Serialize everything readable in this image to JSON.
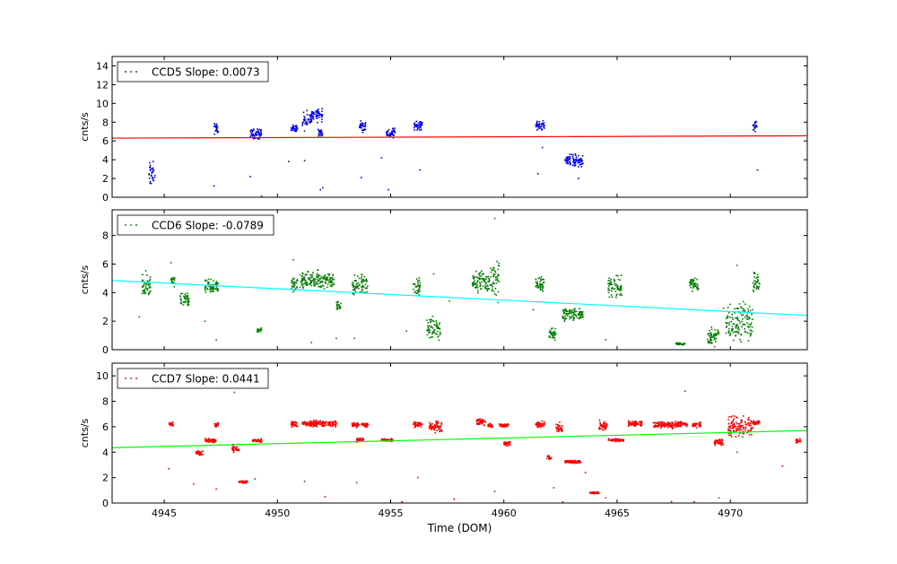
{
  "chart_data": [
    {
      "type": "scatter",
      "ylabel": "cnts/s",
      "xlim": [
        4942.7,
        4973.4
      ],
      "ylim": [
        0,
        15
      ],
      "yticks": [
        0,
        2,
        4,
        6,
        8,
        10,
        12,
        14
      ],
      "legend": "upper-left",
      "series": [
        {
          "name": "CCD5 Slope: 0.0073",
          "color": "#0000ff",
          "clusters": [
            {
              "x": [
                4944.3,
                4944.6
              ],
              "y": [
                0.5,
                4.3
              ]
            },
            {
              "x": [
                4947.2,
                4947.4
              ],
              "y": [
                6.5,
                8.3
              ]
            },
            {
              "x": [
                4948.8,
                4949.3
              ],
              "y": [
                6.0,
                7.5
              ]
            },
            {
              "x": [
                4950.6,
                4950.9
              ],
              "y": [
                6.8,
                7.9
              ]
            },
            {
              "x": [
                4951.1,
                4951.5
              ],
              "y": [
                6.8,
                9.5
              ]
            },
            {
              "x": [
                4951.5,
                4952.0
              ],
              "y": [
                7.8,
                9.8
              ]
            },
            {
              "x": [
                4951.8,
                4952.0
              ],
              "y": [
                6.3,
                7.5
              ]
            },
            {
              "x": [
                4953.6,
                4953.9
              ],
              "y": [
                6.8,
                8.3
              ]
            },
            {
              "x": [
                4954.8,
                4955.2
              ],
              "y": [
                6.2,
                7.6
              ]
            },
            {
              "x": [
                4956.0,
                4956.4
              ],
              "y": [
                7.0,
                8.3
              ]
            },
            {
              "x": [
                4961.4,
                4961.8
              ],
              "y": [
                7.0,
                8.3
              ]
            },
            {
              "x": [
                4962.7,
                4963.5
              ],
              "y": [
                3.0,
                4.8
              ]
            },
            {
              "x": [
                4971.0,
                4971.2
              ],
              "y": [
                6.8,
                8.3
              ]
            }
          ],
          "outliers": {
            "x": [
              4947.2,
              4948.8,
              4949.3,
              4950.5,
              4951.2,
              4951.9,
              4952.0,
              4953.7,
              4954.6,
              4954.9,
              4956.3,
              4961.5,
              4961.7,
              4963.3,
              4971.2
            ],
            "y": [
              1.2,
              2.2,
              0.1,
              3.8,
              3.9,
              0.8,
              1.0,
              2.1,
              4.2,
              0.8,
              2.9,
              2.5,
              5.3,
              2.0,
              2.9
            ]
          }
        }
      ],
      "trend": {
        "color": "#ff0000",
        "x": [
          4942.7,
          4973.4
        ],
        "y": [
          6.3,
          6.55
        ]
      }
    },
    {
      "type": "scatter",
      "ylabel": "cnts/s",
      "xlim": [
        4942.7,
        4973.4
      ],
      "ylim": [
        0,
        9.8
      ],
      "yticks": [
        0,
        2,
        4,
        6,
        8
      ],
      "legend": "upper-left",
      "series": [
        {
          "name": "CCD6 Slope: -0.0789",
          "color": "#008000",
          "clusters": [
            {
              "x": [
                4944.0,
                4944.4
              ],
              "y": [
                3.2,
                5.7
              ]
            },
            {
              "x": [
                4945.3,
                4945.5
              ],
              "y": [
                4.2,
                5.3
              ]
            },
            {
              "x": [
                4945.7,
                4946.1
              ],
              "y": [
                2.8,
                4.1
              ]
            },
            {
              "x": [
                4946.8,
                4947.4
              ],
              "y": [
                3.6,
                5.2
              ]
            },
            {
              "x": [
                4949.1,
                4949.3
              ],
              "y": [
                1.1,
                1.6
              ]
            },
            {
              "x": [
                4950.6,
                4950.9
              ],
              "y": [
                3.7,
                5.4
              ]
            },
            {
              "x": [
                4951.0,
                4952.5
              ],
              "y": [
                4.0,
                5.7
              ]
            },
            {
              "x": [
                4952.6,
                4952.8
              ],
              "y": [
                2.6,
                3.6
              ]
            },
            {
              "x": [
                4953.3,
                4954.0
              ],
              "y": [
                3.6,
                5.5
              ]
            },
            {
              "x": [
                4956.0,
                4956.3
              ],
              "y": [
                3.5,
                5.4
              ]
            },
            {
              "x": [
                4956.6,
                4957.2
              ],
              "y": [
                0.3,
                2.8
              ]
            },
            {
              "x": [
                4958.6,
                4959.4
              ],
              "y": [
                3.6,
                5.8
              ]
            },
            {
              "x": [
                4959.4,
                4959.8
              ],
              "y": [
                2.8,
                7.4
              ]
            },
            {
              "x": [
                4961.4,
                4961.8
              ],
              "y": [
                3.8,
                5.4
              ]
            },
            {
              "x": [
                4962.0,
                4962.3
              ],
              "y": [
                0.6,
                1.6
              ]
            },
            {
              "x": [
                4962.6,
                4963.5
              ],
              "y": [
                1.8,
                3.2
              ]
            },
            {
              "x": [
                4964.6,
                4965.2
              ],
              "y": [
                3.4,
                5.4
              ]
            },
            {
              "x": [
                4967.6,
                4968.0
              ],
              "y": [
                0.3,
                0.5
              ]
            },
            {
              "x": [
                4968.2,
                4968.6
              ],
              "y": [
                3.9,
                5.3
              ]
            },
            {
              "x": [
                4969.0,
                4969.5
              ],
              "y": [
                0.1,
                1.8
              ]
            },
            {
              "x": [
                4969.8,
                4971.0
              ],
              "y": [
                0.1,
                3.9
              ]
            },
            {
              "x": [
                4971.0,
                4971.3
              ],
              "y": [
                3.8,
                5.7
              ]
            }
          ],
          "outliers": {
            "x": [
              4943.9,
              4945.3,
              4946.8,
              4947.3,
              4950.7,
              4951.5,
              4952.6,
              4953.4,
              4955.7,
              4956.9,
              4957.6,
              4959.6,
              4961.3,
              4964.5,
              4969.7,
              4970.3
            ],
            "y": [
              2.3,
              6.1,
              2.0,
              0.7,
              6.3,
              0.5,
              0.8,
              0.8,
              1.3,
              5.3,
              3.4,
              9.2,
              2.8,
              0.7,
              2.9,
              5.9
            ]
          }
        }
      ],
      "trend": {
        "color": "#00ffff",
        "x": [
          4942.7,
          4973.4
        ],
        "y": [
          4.85,
          2.4
        ]
      }
    },
    {
      "type": "scatter",
      "ylabel": "cnts/s",
      "xlabel": "Time (DOM)",
      "xlim": [
        4942.7,
        4973.4
      ],
      "ylim": [
        0,
        11
      ],
      "yticks": [
        0,
        2,
        4,
        6,
        8,
        10
      ],
      "xticks": [
        4945,
        4950,
        4955,
        4960,
        4965,
        4970
      ],
      "legend": "upper-left",
      "series": [
        {
          "name": "CCD7 Slope: 0.0441",
          "color": "#ff0000",
          "clusters": [
            {
              "x": [
                4945.2,
                4945.4
              ],
              "y": [
                5.9,
                6.5
              ]
            },
            {
              "x": [
                4946.4,
                4946.7
              ],
              "y": [
                3.6,
                4.2
              ]
            },
            {
              "x": [
                4946.8,
                4947.3
              ],
              "y": [
                4.7,
                5.1
              ]
            },
            {
              "x": [
                4947.2,
                4947.4
              ],
              "y": [
                5.9,
                6.4
              ]
            },
            {
              "x": [
                4948.0,
                4948.3
              ],
              "y": [
                3.9,
                4.7
              ]
            },
            {
              "x": [
                4948.3,
                4948.7
              ],
              "y": [
                1.5,
                1.8
              ]
            },
            {
              "x": [
                4948.9,
                4949.3
              ],
              "y": [
                4.7,
                5.1
              ]
            },
            {
              "x": [
                4950.6,
                4950.9
              ],
              "y": [
                5.9,
                6.5
              ]
            },
            {
              "x": [
                4951.1,
                4952.6
              ],
              "y": [
                5.9,
                6.6
              ]
            },
            {
              "x": [
                4953.3,
                4953.6
              ],
              "y": [
                5.9,
                6.4
              ]
            },
            {
              "x": [
                4953.7,
                4954.0
              ],
              "y": [
                5.9,
                6.4
              ]
            },
            {
              "x": [
                4953.5,
                4953.8
              ],
              "y": [
                4.7,
                5.2
              ]
            },
            {
              "x": [
                4954.6,
                4955.1
              ],
              "y": [
                4.8,
                5.1
              ]
            },
            {
              "x": [
                4956.0,
                4956.4
              ],
              "y": [
                5.8,
                6.5
              ]
            },
            {
              "x": [
                4956.7,
                4957.3
              ],
              "y": [
                5.4,
                6.7
              ]
            },
            {
              "x": [
                4958.8,
                4959.2
              ],
              "y": [
                6.0,
                6.7
              ]
            },
            {
              "x": [
                4959.3,
                4959.5
              ],
              "y": [
                5.8,
                6.3
              ]
            },
            {
              "x": [
                4959.8,
                4960.2
              ],
              "y": [
                5.9,
                6.3
              ]
            },
            {
              "x": [
                4960.0,
                4960.3
              ],
              "y": [
                4.4,
                5.0
              ]
            },
            {
              "x": [
                4961.4,
                4961.8
              ],
              "y": [
                5.8,
                6.5
              ]
            },
            {
              "x": [
                4961.9,
                4962.1
              ],
              "y": [
                3.2,
                3.9
              ]
            },
            {
              "x": [
                4962.3,
                4962.6
              ],
              "y": [
                5.3,
                6.5
              ]
            },
            {
              "x": [
                4962.7,
                4963.4
              ],
              "y": [
                3.1,
                3.4
              ]
            },
            {
              "x": [
                4963.8,
                4964.2
              ],
              "y": [
                0.7,
                0.9
              ]
            },
            {
              "x": [
                4964.2,
                4964.6
              ],
              "y": [
                5.5,
                6.6
              ]
            },
            {
              "x": [
                4964.6,
                4965.3
              ],
              "y": [
                4.8,
                5.1
              ]
            },
            {
              "x": [
                4965.5,
                4966.1
              ],
              "y": [
                6.0,
                6.5
              ]
            },
            {
              "x": [
                4966.6,
                4967.8
              ],
              "y": [
                5.8,
                6.5
              ]
            },
            {
              "x": [
                4967.8,
                4968.1
              ],
              "y": [
                5.9,
                6.5
              ]
            },
            {
              "x": [
                4968.3,
                4968.7
              ],
              "y": [
                5.9,
                6.4
              ]
            },
            {
              "x": [
                4969.3,
                4969.7
              ],
              "y": [
                4.4,
                5.2
              ]
            },
            {
              "x": [
                4969.9,
                4971.0
              ],
              "y": [
                4.8,
                7.2
              ]
            },
            {
              "x": [
                4971.0,
                4971.3
              ],
              "y": [
                6.1,
                6.5
              ]
            },
            {
              "x": [
                4972.9,
                4973.1
              ],
              "y": [
                4.6,
                5.1
              ]
            }
          ],
          "outliers": {
            "x": [
              4945.2,
              4946.3,
              4947.3,
              4948.1,
              4949.0,
              4951.2,
              4952.1,
              4953.5,
              4955.5,
              4956.2,
              4957.8,
              4959.6,
              4962.2,
              4962.6,
              4963.6,
              4964.5,
              4967.4,
              4968.0,
              4968.4,
              4969.5,
              4970.3,
              4972.3
            ],
            "y": [
              2.7,
              1.5,
              1.1,
              8.7,
              1.9,
              1.7,
              0.5,
              1.6,
              0.1,
              2.0,
              0.3,
              0.9,
              1.2,
              0.1,
              2.4,
              0.4,
              0.1,
              8.8,
              0.1,
              0.4,
              4.0,
              2.9
            ]
          }
        }
      ],
      "trend": {
        "color": "#00ff00",
        "x": [
          4942.7,
          4973.4
        ],
        "y": [
          4.35,
          5.7
        ]
      }
    }
  ]
}
